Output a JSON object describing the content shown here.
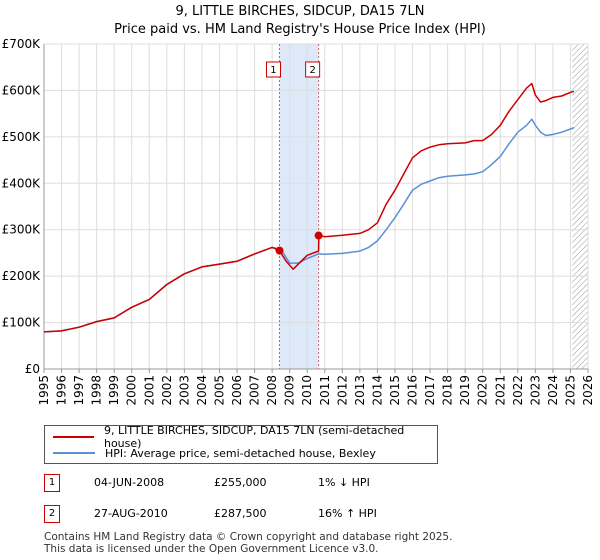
{
  "title_line1": "9, LITTLE BIRCHES, SIDCUP, DA15 7LN",
  "title_line2": "Price paid vs. HM Land Registry's House Price Index (HPI)",
  "legend": {
    "property_label": "9, LITTLE BIRCHES, SIDCUP, DA15 7LN (semi-detached house)",
    "hpi_label": "HPI: Average price, semi-detached house, Bexley"
  },
  "transactions": [
    {
      "num": "1",
      "date": "04-JUN-2008",
      "price": "£255,000",
      "hpi": "1% ↓ HPI"
    },
    {
      "num": "2",
      "date": "27-AUG-2010",
      "price": "£287,500",
      "hpi": "16% ↑ HPI"
    }
  ],
  "footer": {
    "line1": "Contains HM Land Registry data © Crown copyright and database right 2025.",
    "line2": "This data is licensed under the Open Government Licence v3.0."
  },
  "chart_data": {
    "type": "line",
    "xlim": [
      1995,
      2026
    ],
    "ylim": [
      0,
      700000
    ],
    "y_ticks": [
      0,
      100000,
      200000,
      300000,
      400000,
      500000,
      600000,
      700000
    ],
    "y_tick_labels": [
      "£0",
      "£100K",
      "£200K",
      "£300K",
      "£400K",
      "£500K",
      "£600K",
      "£700K"
    ],
    "x_ticks": [
      1995,
      1996,
      1997,
      1998,
      1999,
      2000,
      2001,
      2002,
      2003,
      2004,
      2005,
      2006,
      2007,
      2008,
      2009,
      2010,
      2011,
      2012,
      2013,
      2014,
      2015,
      2016,
      2017,
      2018,
      2019,
      2020,
      2021,
      2022,
      2023,
      2024,
      2025,
      2026
    ],
    "grid": true,
    "colors": {
      "property": "#cc0000",
      "hpi": "#5b8fd6",
      "shade": "#dde8f8",
      "event_line": "#cc6666",
      "hatch": "#999999"
    },
    "shaded_region": [
      2008.42,
      2010.65
    ],
    "hatched_from": 2025.1,
    "markers": [
      {
        "label": "1",
        "x": 2008.42,
        "y": 255000
      },
      {
        "label": "2",
        "x": 2010.65,
        "y": 287500
      }
    ],
    "series": [
      {
        "name": "9, LITTLE BIRCHES, SIDCUP, DA15 7LN (semi-detached house)",
        "color": "#cc0000",
        "x": [
          1995,
          1996,
          1997,
          1998,
          1999,
          2000,
          2001,
          2002,
          2003,
          2004,
          2005,
          2006,
          2007,
          2008,
          2008.42,
          2008.8,
          2009.2,
          2009.6,
          2010,
          2010.5,
          2010.65,
          2010.66,
          2011,
          2012,
          2013,
          2013.5,
          2014,
          2014.5,
          2015,
          2015.5,
          2016,
          2016.5,
          2017,
          2017.5,
          2018,
          2019,
          2019.5,
          2020,
          2020.5,
          2021,
          2021.5,
          2022,
          2022.5,
          2022.8,
          2023,
          2023.3,
          2023.6,
          2024,
          2024.5,
          2025,
          2025.2
        ],
        "y": [
          80000,
          82000,
          90000,
          102000,
          110000,
          133000,
          150000,
          182000,
          205000,
          220000,
          226000,
          232000,
          248000,
          262000,
          255000,
          232000,
          215000,
          230000,
          245000,
          252000,
          254000,
          287500,
          285000,
          288000,
          292000,
          300000,
          315000,
          355000,
          385000,
          420000,
          455000,
          470000,
          478000,
          483000,
          485000,
          487000,
          492000,
          492000,
          505000,
          525000,
          555000,
          580000,
          605000,
          615000,
          590000,
          575000,
          578000,
          585000,
          588000,
          596000,
          598000
        ]
      },
      {
        "name": "HPI: Average price, semi-detached house, Bexley",
        "color": "#5b8fd6",
        "x": [
          1995,
          1996,
          1997,
          1998,
          1999,
          2000,
          2001,
          2002,
          2003,
          2004,
          2005,
          2006,
          2007,
          2008,
          2008.5,
          2009,
          2009.5,
          2010,
          2010.65,
          2011,
          2012,
          2013,
          2013.5,
          2014,
          2014.5,
          2015,
          2015.5,
          2016,
          2016.5,
          2017,
          2017.5,
          2018,
          2019,
          2019.5,
          2020,
          2020.5,
          2021,
          2021.5,
          2022,
          2022.5,
          2022.8,
          2023,
          2023.3,
          2023.6,
          2024,
          2024.5,
          2025,
          2025.2
        ],
        "y": [
          80000,
          82000,
          90000,
          102000,
          110000,
          133000,
          150000,
          182000,
          205000,
          220000,
          226000,
          232000,
          248000,
          262000,
          258000,
          228000,
          228000,
          238000,
          248000,
          247000,
          249000,
          254000,
          262000,
          276000,
          300000,
          326000,
          355000,
          385000,
          398000,
          405000,
          412000,
          415000,
          418000,
          420000,
          425000,
          440000,
          458000,
          485000,
          510000,
          525000,
          538000,
          525000,
          510000,
          503000,
          505000,
          510000,
          517000,
          520000
        ]
      }
    ]
  }
}
